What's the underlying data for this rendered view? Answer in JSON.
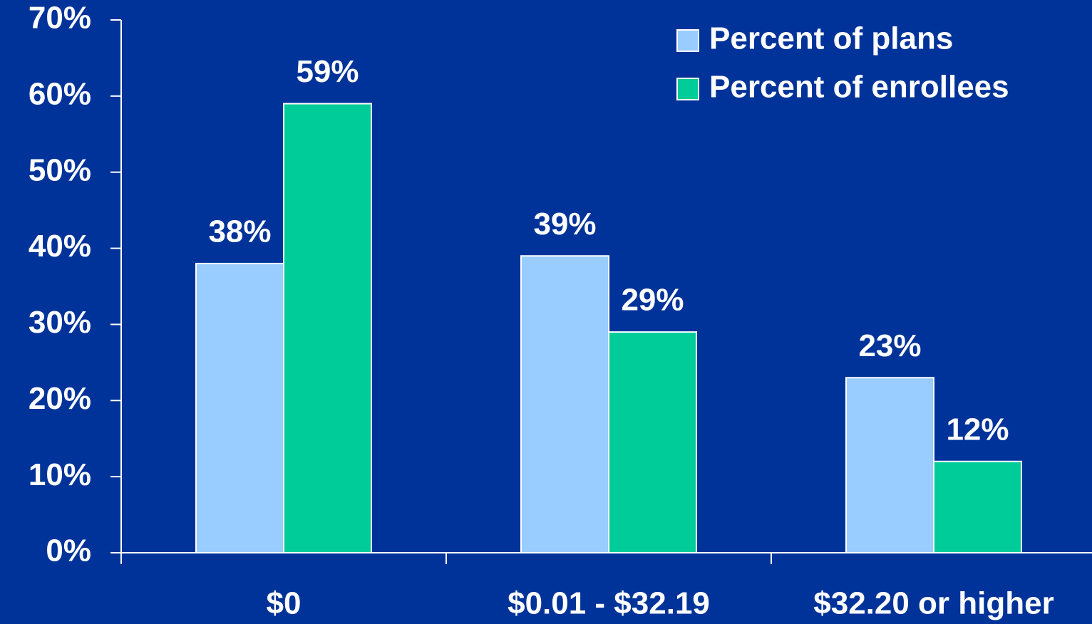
{
  "chart_data": {
    "type": "bar",
    "categories": [
      "$0",
      "$0.01 - $32.19",
      "$32.20 or higher"
    ],
    "series": [
      {
        "name": "Percent of plans",
        "color": "#99ccff",
        "values": [
          38,
          39,
          23
        ],
        "value_labels": [
          "38%",
          "39%",
          "23%"
        ]
      },
      {
        "name": "Percent of enrollees",
        "color": "#00cc99",
        "values": [
          59,
          29,
          12
        ],
        "value_labels": [
          "59%",
          "29%",
          "12%"
        ]
      }
    ],
    "ylim": [
      0,
      70
    ],
    "yticks": [
      {
        "value": 0,
        "label": "0%"
      },
      {
        "value": 10,
        "label": "10%"
      },
      {
        "value": 20,
        "label": "20%"
      },
      {
        "value": 30,
        "label": "30%"
      },
      {
        "value": 40,
        "label": "40%"
      },
      {
        "value": 50,
        "label": "50%"
      },
      {
        "value": 60,
        "label": "60%"
      },
      {
        "value": 70,
        "label": "70%"
      }
    ],
    "legend": "upper right"
  }
}
